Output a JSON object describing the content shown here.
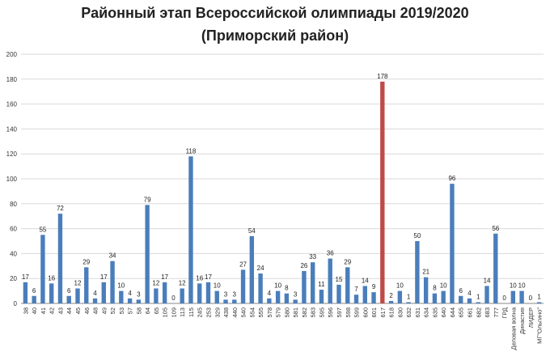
{
  "title": {
    "line1": "Районный этап Всероссийской олимпиады 2019/2020",
    "line2": "(Приморский район)"
  },
  "colors": {
    "bar": "#4a7ebb",
    "highlight": "#be4b48",
    "grid": "#d9d9d9",
    "axis": "#888888"
  },
  "chart_data": {
    "type": "bar",
    "title": "Районный этап Всероссийской олимпиады 2019/2020 (Приморский район)",
    "xlabel": "",
    "ylabel": "",
    "ylim": [
      0,
      200
    ],
    "yticks": [
      0,
      20,
      40,
      60,
      80,
      100,
      120,
      140,
      160,
      180,
      200
    ],
    "grid": true,
    "legend": "none",
    "highlight_category": "617",
    "categories": [
      "38",
      "40",
      "41",
      "42",
      "43",
      "44",
      "45",
      "46",
      "48",
      "49",
      "52",
      "53",
      "57",
      "58",
      "64",
      "65",
      "105",
      "109",
      "113",
      "115",
      "245",
      "253",
      "329",
      "438",
      "440",
      "540",
      "554",
      "555",
      "578",
      "579",
      "580",
      "581",
      "582",
      "583",
      "595",
      "596",
      "597",
      "598",
      "599",
      "600",
      "601",
      "617",
      "618",
      "630",
      "632",
      "631",
      "634",
      "635",
      "640",
      "644",
      "655",
      "661",
      "682",
      "683",
      "777",
      "ГРД",
      "Деловая волна",
      "Династия",
      "ЛИДЕР",
      "МГ\"Ольгино\""
    ],
    "values": [
      17,
      6,
      55,
      16,
      72,
      6,
      12,
      29,
      4,
      17,
      34,
      10,
      4,
      3,
      79,
      12,
      17,
      0,
      12,
      118,
      16,
      17,
      10,
      3,
      3,
      27,
      54,
      24,
      4,
      10,
      8,
      3,
      26,
      33,
      11,
      36,
      15,
      29,
      7,
      14,
      9,
      178,
      2,
      10,
      1,
      50,
      21,
      8,
      10,
      96,
      6,
      4,
      1,
      14,
      56,
      0,
      10,
      10,
      0,
      1
    ]
  }
}
